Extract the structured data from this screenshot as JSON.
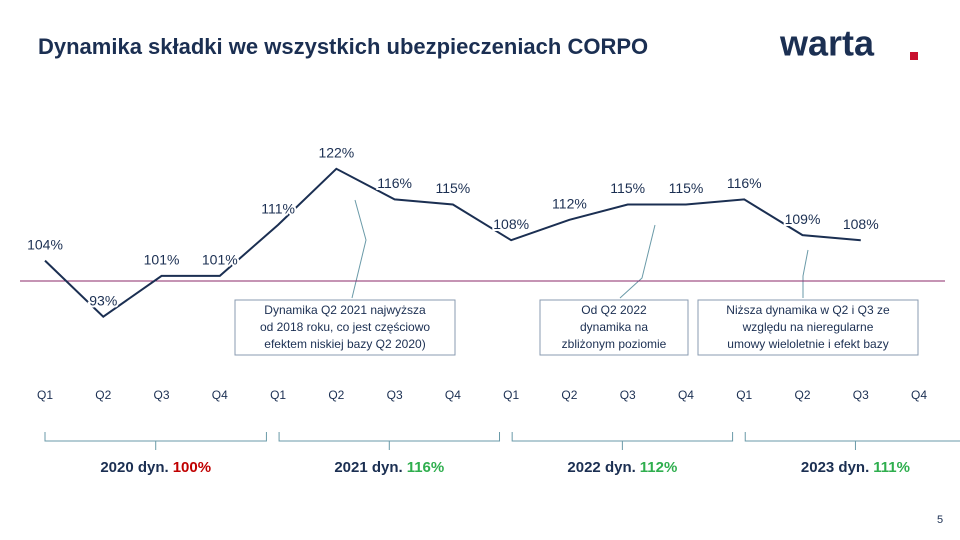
{
  "chart_data": {
    "type": "line",
    "title": "Dynamika składki we wszystkich ubezpieczeniach CORPO",
    "logo": "warta",
    "page_number": "5",
    "categories": [
      "Q1",
      "Q2",
      "Q3",
      "Q4",
      "Q1",
      "Q2",
      "Q3",
      "Q4",
      "Q1",
      "Q2",
      "Q3",
      "Q4",
      "Q1",
      "Q2",
      "Q3",
      "Q4"
    ],
    "series": [
      {
        "name": "Dynamika składki",
        "color": "#1b2f52",
        "values": [
          104,
          93,
          101,
          101,
          111,
          122,
          116,
          115,
          108,
          112,
          115,
          115,
          116,
          109,
          108,
          null
        ],
        "value_labels": [
          "104%",
          "93%",
          "101%",
          "101%",
          "111%",
          "122%",
          "116%",
          "115%",
          "108%",
          "112%",
          "115%",
          "115%",
          "116%",
          "109%",
          "108%",
          null
        ]
      }
    ],
    "ylim": [
      85,
      125
    ],
    "reference_line": {
      "value": 100,
      "color": "#8b2a6a"
    },
    "year_groups": [
      {
        "name": "2020 dyn.",
        "growth": "100%",
        "color": "#c00000"
      },
      {
        "name": "2021 dyn.",
        "growth": "116%",
        "color": "#2fae4e"
      },
      {
        "name": "2022 dyn.",
        "growth": "112%",
        "color": "#2fae4e"
      },
      {
        "name": "2023 dyn.",
        "growth": "111%",
        "color": "#2fae4e"
      }
    ],
    "annotations": [
      {
        "lines": [
          "Dynamika Q2 2021 najwyższa",
          "od 2018 roku, co jest częściowo",
          "efektem  niskiej bazy Q2 2020)"
        ]
      },
      {
        "lines": [
          "Od Q2 2022",
          "dynamika na",
          "zbliżonym poziomie"
        ]
      },
      {
        "lines": [
          "Niższa dynamika w Q2 i Q3 ze",
          "względu na nieregularne",
          "umowy wieloletnie i efekt bazy"
        ]
      }
    ]
  }
}
